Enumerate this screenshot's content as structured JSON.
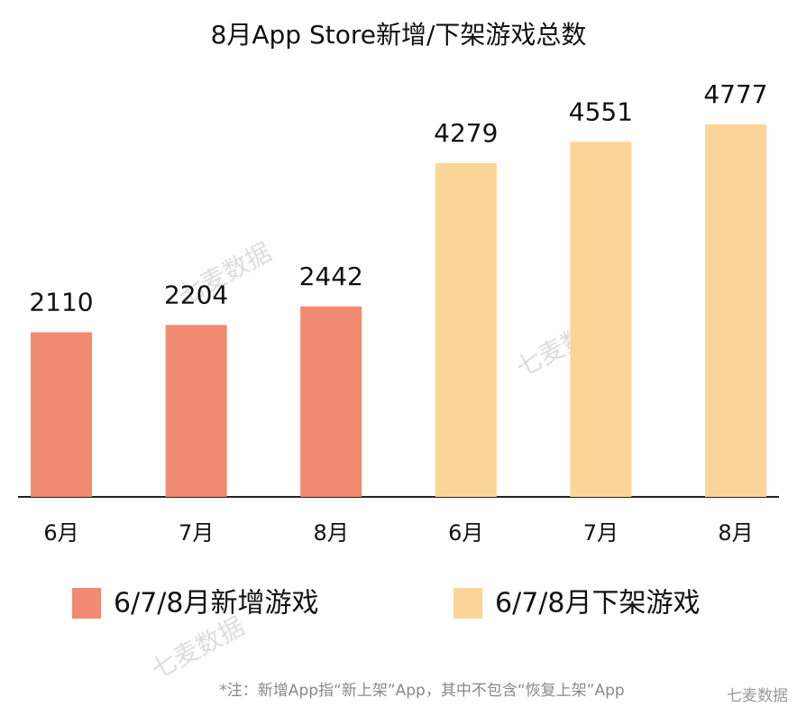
{
  "chart_data": {
    "type": "bar",
    "title": "8月App Store新增/下架游戏总数",
    "categories": [
      "6月",
      "7月",
      "8月",
      "6月",
      "7月",
      "8月"
    ],
    "series": [
      {
        "name": "6/7/8月新增游戏",
        "color": "#f08a70",
        "values": [
          2110,
          2204,
          2442,
          null,
          null,
          null
        ]
      },
      {
        "name": "6/7/8月下架游戏",
        "color": "#fdd598",
        "values": [
          null,
          null,
          null,
          4279,
          4551,
          4777
        ]
      }
    ],
    "ylim": [
      0,
      5000
    ],
    "footnote": "*注：新增App指“新上架”App，其中不包含“恢复上架”App",
    "watermark": "七麦数据"
  }
}
